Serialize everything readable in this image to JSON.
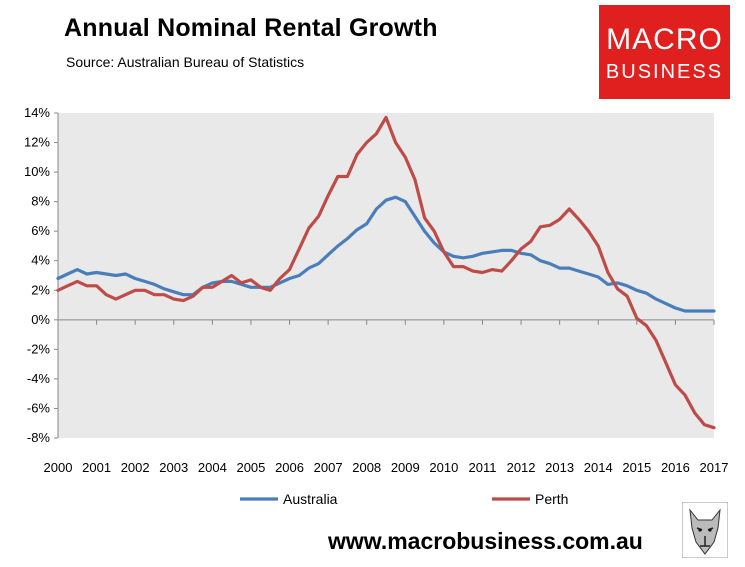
{
  "header": {
    "title": "Annual Nominal Rental Growth",
    "subtitle": "Source: Australian Bureau of Statistics"
  },
  "logo": {
    "line1": "MACRO",
    "line2": "BUSINESS",
    "color": "#e0201f"
  },
  "footer": {
    "url": "www.macrobusiness.com.au"
  },
  "chart_data": {
    "type": "line",
    "title": "Annual Nominal Rental Growth",
    "xlabel": "",
    "ylabel": "",
    "xlim": [
      2000,
      2017
    ],
    "ylim": [
      -8,
      14
    ],
    "grid": false,
    "legend": "bottom",
    "x_ticks": [
      "2000",
      "2001",
      "2002",
      "2003",
      "2004",
      "2005",
      "2006",
      "2007",
      "2008",
      "2009",
      "2010",
      "2011",
      "2012",
      "2013",
      "2014",
      "2015",
      "2016",
      "2017"
    ],
    "y_ticks": [
      "14%",
      "12%",
      "10%",
      "8%",
      "6%",
      "4%",
      "2%",
      "0%",
      "-2%",
      "-4%",
      "-6%",
      "-8%"
    ],
    "y_tick_values": [
      14,
      12,
      10,
      8,
      6,
      4,
      2,
      0,
      -2,
      -4,
      -6,
      -8
    ],
    "series": [
      {
        "name": "Australia",
        "color": "#4a7ebb",
        "x": [
          2000,
          2000.25,
          2000.5,
          2000.75,
          2001,
          2001.25,
          2001.5,
          2001.75,
          2002,
          2002.25,
          2002.5,
          2002.75,
          2003,
          2003.25,
          2003.5,
          2003.75,
          2004,
          2004.25,
          2004.5,
          2004.75,
          2005,
          2005.25,
          2005.5,
          2005.75,
          2006,
          2006.25,
          2006.5,
          2006.75,
          2007,
          2007.25,
          2007.5,
          2007.75,
          2008,
          2008.25,
          2008.5,
          2008.75,
          2009,
          2009.25,
          2009.5,
          2009.75,
          2010,
          2010.25,
          2010.5,
          2010.75,
          2011,
          2011.25,
          2011.5,
          2011.75,
          2012,
          2012.25,
          2012.5,
          2012.75,
          2013,
          2013.25,
          2013.5,
          2013.75,
          2014,
          2014.25,
          2014.5,
          2014.75,
          2015,
          2015.25,
          2015.5,
          2015.75,
          2016,
          2016.25,
          2016.5,
          2016.75,
          2017
        ],
        "values": [
          2.8,
          3.1,
          3.4,
          3.1,
          3.2,
          3.1,
          3.0,
          3.1,
          2.8,
          2.6,
          2.4,
          2.1,
          1.9,
          1.7,
          1.7,
          2.2,
          2.5,
          2.6,
          2.6,
          2.4,
          2.2,
          2.2,
          2.2,
          2.5,
          2.8,
          3.0,
          3.5,
          3.8,
          4.4,
          5.0,
          5.5,
          6.1,
          6.5,
          7.5,
          8.1,
          8.3,
          8.0,
          7.0,
          6.0,
          5.2,
          4.6,
          4.3,
          4.2,
          4.3,
          4.5,
          4.6,
          4.7,
          4.7,
          4.5,
          4.4,
          4.0,
          3.8,
          3.5,
          3.5,
          3.3,
          3.1,
          2.9,
          2.4,
          2.5,
          2.3,
          2.0,
          1.8,
          1.4,
          1.1,
          0.8,
          0.6,
          0.6,
          0.6,
          0.6
        ]
      },
      {
        "name": "Perth",
        "color": "#be4b48",
        "x": [
          2000,
          2000.25,
          2000.5,
          2000.75,
          2001,
          2001.25,
          2001.5,
          2001.75,
          2002,
          2002.25,
          2002.5,
          2002.75,
          2003,
          2003.25,
          2003.5,
          2003.75,
          2004,
          2004.25,
          2004.5,
          2004.75,
          2005,
          2005.25,
          2005.5,
          2005.75,
          2006,
          2006.25,
          2006.5,
          2006.75,
          2007,
          2007.25,
          2007.5,
          2007.75,
          2008,
          2008.25,
          2008.5,
          2008.75,
          2009,
          2009.25,
          2009.5,
          2009.75,
          2010,
          2010.25,
          2010.5,
          2010.75,
          2011,
          2011.25,
          2011.5,
          2011.75,
          2012,
          2012.25,
          2012.5,
          2012.75,
          2013,
          2013.25,
          2013.5,
          2013.75,
          2014,
          2014.25,
          2014.5,
          2014.75,
          2015,
          2015.25,
          2015.5,
          2015.75,
          2016,
          2016.25,
          2016.5,
          2016.75,
          2017
        ],
        "values": [
          2.0,
          2.3,
          2.6,
          2.3,
          2.3,
          1.7,
          1.4,
          1.7,
          2.0,
          2.0,
          1.7,
          1.7,
          1.4,
          1.3,
          1.6,
          2.2,
          2.2,
          2.6,
          3.0,
          2.5,
          2.7,
          2.2,
          2.0,
          2.8,
          3.4,
          4.8,
          6.2,
          7.0,
          8.4,
          9.7,
          9.7,
          11.2,
          12.0,
          12.6,
          13.7,
          12.0,
          11.0,
          9.5,
          6.9,
          6.0,
          4.6,
          3.6,
          3.6,
          3.3,
          3.2,
          3.4,
          3.3,
          4.0,
          4.8,
          5.3,
          6.3,
          6.4,
          6.8,
          7.5,
          6.8,
          6.0,
          5.0,
          3.2,
          2.1,
          1.6,
          0.1,
          -0.4,
          -1.4,
          -2.9,
          -4.4,
          -5.1,
          -6.3,
          -7.1,
          -7.3
        ]
      }
    ]
  }
}
